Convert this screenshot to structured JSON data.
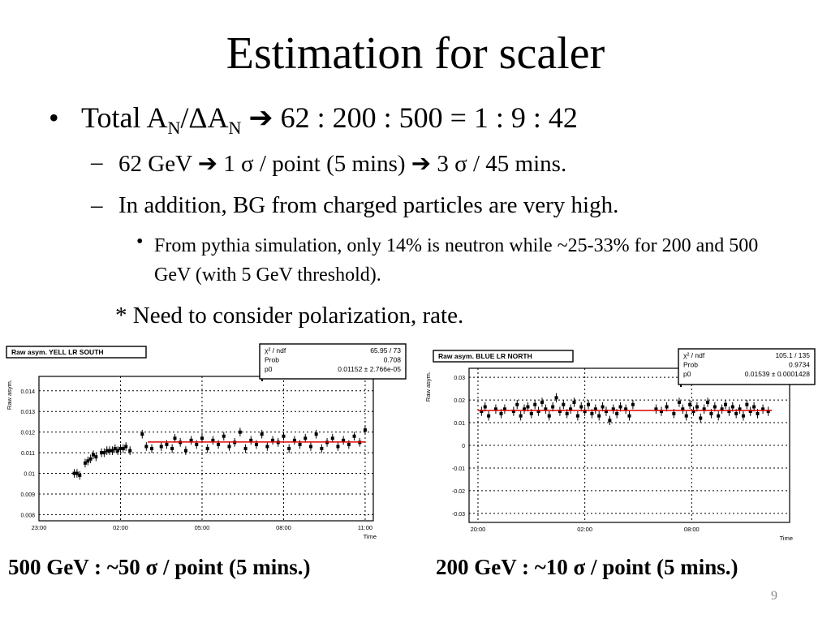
{
  "title": "Estimation for scaler",
  "bullet1": {
    "prefix": "Total A",
    "sub1": "N",
    "mid": "/ΔA",
    "sub2": "N",
    "suffix": " ➔ 62 : 200 : 500 = 1 : 9 : 42"
  },
  "sub_bullets": [
    "62 GeV ➔ 1 σ / point (5 mins)  ➔ 3 σ / 45 mins.",
    "In addition, BG from charged particles are very high."
  ],
  "sub_sub_bullet": "From pythia simulation, only 14% is neutron while ~25-33% for 200 and 500 GeV (with 5 GeV threshold).",
  "note": "* Need to consider polarization, rate.",
  "captions": {
    "left": "500 GeV : ~50 σ / point (5 mins.)",
    "right": "200 GeV : ~10 σ / point (5 mins.)"
  },
  "page_number": "9",
  "chart_data": [
    {
      "type": "scatter",
      "title": "Raw asym. YELL LR SOUTH",
      "ylabel": "Raw asym.",
      "xlabel": "Time",
      "x_tick_labels": [
        "23:00",
        "02:00",
        "05:00",
        "08:00",
        "11:00"
      ],
      "x_tick_hours": [
        0,
        3,
        6,
        9,
        12
      ],
      "xlim": [
        0,
        12.3
      ],
      "y_ticks": [
        0.008,
        0.009,
        0.01,
        0.011,
        0.012,
        0.013,
        0.014
      ],
      "y_tick_labels": [
        "0.008",
        "0.009",
        "0.01",
        "0.011",
        "0.012",
        "0.013",
        "0.014"
      ],
      "ylim": [
        0.0077,
        0.0147
      ],
      "grid": true,
      "fit_value": 0.01152,
      "fit_range": [
        4.0,
        12.0
      ],
      "fit_color": "#e00000",
      "stats": [
        {
          "label": "χ² / ndf",
          "value": "65.95 / 73"
        },
        {
          "label": "Prob",
          "value": "0.708"
        },
        {
          "label": "p0",
          "value": "0.01152 ± 2.766e-05"
        }
      ],
      "points": [
        [
          1.3,
          0.01
        ],
        [
          1.4,
          0.01
        ],
        [
          1.5,
          0.0099
        ],
        [
          1.7,
          0.0105
        ],
        [
          1.8,
          0.0106
        ],
        [
          1.9,
          0.0107
        ],
        [
          2.0,
          0.0109
        ],
        [
          2.1,
          0.0108
        ],
        [
          2.3,
          0.011
        ],
        [
          2.4,
          0.011
        ],
        [
          2.5,
          0.0111
        ],
        [
          2.6,
          0.0111
        ],
        [
          2.7,
          0.0111
        ],
        [
          2.8,
          0.0112
        ],
        [
          2.9,
          0.0111
        ],
        [
          3.0,
          0.0112
        ],
        [
          3.1,
          0.0112
        ],
        [
          3.2,
          0.0113
        ],
        [
          3.35,
          0.0111
        ],
        [
          3.8,
          0.0119
        ],
        [
          3.95,
          0.0113
        ],
        [
          4.15,
          0.0112
        ],
        [
          4.5,
          0.0113
        ],
        [
          4.7,
          0.0114
        ],
        [
          4.9,
          0.0112
        ],
        [
          5.0,
          0.0117
        ],
        [
          5.2,
          0.0115
        ],
        [
          5.4,
          0.0111
        ],
        [
          5.6,
          0.0116
        ],
        [
          5.8,
          0.0114
        ],
        [
          6.0,
          0.0117
        ],
        [
          6.2,
          0.0112
        ],
        [
          6.4,
          0.0116
        ],
        [
          6.6,
          0.0114
        ],
        [
          6.8,
          0.0118
        ],
        [
          7.0,
          0.0113
        ],
        [
          7.2,
          0.0115
        ],
        [
          7.4,
          0.012
        ],
        [
          7.6,
          0.0112
        ],
        [
          7.8,
          0.0116
        ],
        [
          8.0,
          0.0114
        ],
        [
          8.2,
          0.0119
        ],
        [
          8.4,
          0.0113
        ],
        [
          8.6,
          0.0116
        ],
        [
          8.8,
          0.0115
        ],
        [
          9.0,
          0.0118
        ],
        [
          9.2,
          0.0112
        ],
        [
          9.4,
          0.0116
        ],
        [
          9.6,
          0.0114
        ],
        [
          9.8,
          0.0117
        ],
        [
          10.0,
          0.0113
        ],
        [
          10.2,
          0.0119
        ],
        [
          10.4,
          0.0112
        ],
        [
          10.6,
          0.0115
        ],
        [
          10.8,
          0.0117
        ],
        [
          11.0,
          0.0113
        ],
        [
          11.2,
          0.0116
        ],
        [
          11.4,
          0.0114
        ],
        [
          11.6,
          0.0118
        ],
        [
          11.8,
          0.0115
        ],
        [
          12.0,
          0.0121
        ]
      ]
    },
    {
      "type": "scatter",
      "title": "Raw asym. BLUE LR NORTH",
      "ylabel": "Raw asym.",
      "xlabel": "Time",
      "x_tick_labels": [
        "20:00",
        "02:00",
        "08:00"
      ],
      "x_tick_hours": [
        0,
        6,
        12
      ],
      "xlim": [
        -0.5,
        17.5
      ],
      "y_ticks": [
        -0.03,
        -0.02,
        -0.01,
        0,
        0.01,
        0.02,
        0.03
      ],
      "y_tick_labels": [
        "-0.03",
        "-0.02",
        "-0.01",
        "0",
        "0.01",
        "0.02",
        "0.03"
      ],
      "ylim": [
        -0.034,
        0.034
      ],
      "grid": true,
      "fit_value": 0.01539,
      "fit_range": [
        0,
        16.5
      ],
      "fit_color": "#e00000",
      "stats": [
        {
          "label": "χ² / ndf",
          "value": "105.1 / 135"
        },
        {
          "label": "Prob",
          "value": "0.9734"
        },
        {
          "label": "p0",
          "value": "0.01539 ± 0.0001428"
        }
      ],
      "points": [
        [
          0.2,
          0.015
        ],
        [
          0.4,
          0.017
        ],
        [
          0.6,
          0.013
        ],
        [
          1.0,
          0.016
        ],
        [
          1.3,
          0.014
        ],
        [
          1.5,
          0.016
        ],
        [
          2.0,
          0.015
        ],
        [
          2.2,
          0.018
        ],
        [
          2.4,
          0.013
        ],
        [
          2.6,
          0.016
        ],
        [
          2.8,
          0.017
        ],
        [
          3.0,
          0.014
        ],
        [
          3.2,
          0.018
        ],
        [
          3.4,
          0.015
        ],
        [
          3.6,
          0.019
        ],
        [
          3.8,
          0.016
        ],
        [
          4.0,
          0.013
        ],
        [
          4.2,
          0.017
        ],
        [
          4.4,
          0.021
        ],
        [
          4.6,
          0.015
        ],
        [
          4.8,
          0.018
        ],
        [
          5.0,
          0.014
        ],
        [
          5.2,
          0.016
        ],
        [
          5.4,
          0.019
        ],
        [
          5.6,
          0.013
        ],
        [
          5.8,
          0.017
        ],
        [
          6.0,
          0.015
        ],
        [
          6.2,
          0.018
        ],
        [
          6.4,
          0.014
        ],
        [
          6.6,
          0.016
        ],
        [
          6.8,
          0.013
        ],
        [
          7.0,
          0.017
        ],
        [
          7.2,
          0.015
        ],
        [
          7.4,
          0.011
        ],
        [
          7.6,
          0.016
        ],
        [
          7.8,
          0.014
        ],
        [
          8.0,
          0.017
        ],
        [
          8.3,
          0.016
        ],
        [
          8.5,
          0.013
        ],
        [
          8.7,
          0.018
        ],
        [
          10.0,
          0.016
        ],
        [
          10.3,
          0.015
        ],
        [
          10.6,
          0.017
        ],
        [
          11.0,
          0.014
        ],
        [
          11.3,
          0.019
        ],
        [
          11.5,
          0.016
        ],
        [
          11.7,
          0.013
        ],
        [
          11.9,
          0.018
        ],
        [
          12.1,
          0.015
        ],
        [
          12.3,
          0.017
        ],
        [
          12.5,
          0.012
        ],
        [
          12.7,
          0.016
        ],
        [
          12.9,
          0.019
        ],
        [
          13.1,
          0.014
        ],
        [
          13.3,
          0.017
        ],
        [
          13.5,
          0.013
        ],
        [
          13.7,
          0.016
        ],
        [
          13.9,
          0.018
        ],
        [
          14.1,
          0.015
        ],
        [
          14.3,
          0.017
        ],
        [
          14.5,
          0.014
        ],
        [
          14.7,
          0.016
        ],
        [
          14.9,
          0.013
        ],
        [
          15.1,
          0.018
        ],
        [
          15.3,
          0.015
        ],
        [
          15.5,
          0.017
        ],
        [
          15.7,
          0.014
        ],
        [
          16.0,
          0.016
        ],
        [
          16.3,
          0.015
        ]
      ]
    }
  ]
}
